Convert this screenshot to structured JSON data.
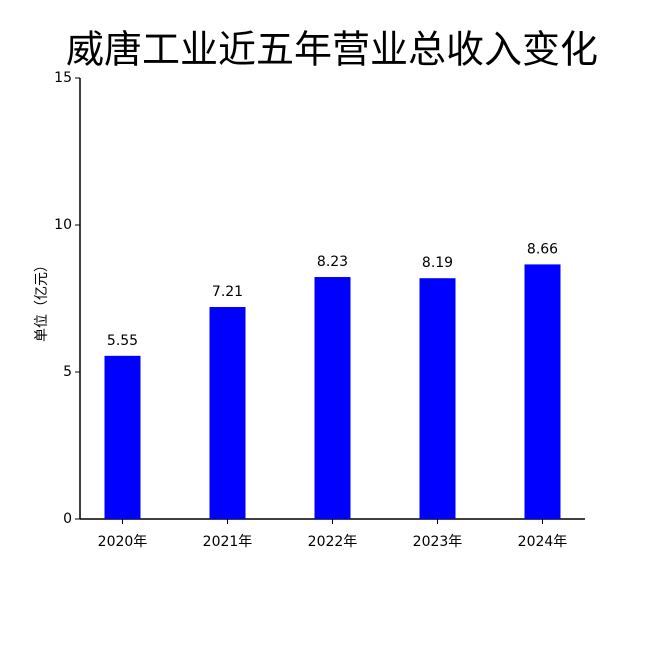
{
  "chart_data": {
    "type": "bar",
    "title": "威唐工业近五年营业总收入变化",
    "y_label": "单位（亿元）",
    "categories": [
      "2020年",
      "2021年",
      "2022年",
      "2023年",
      "2024年"
    ],
    "values": [
      5.55,
      7.21,
      8.23,
      8.19,
      8.66
    ],
    "color": "#0000ff",
    "ylim": [
      0,
      15
    ],
    "yticks": [
      0,
      5,
      10,
      15
    ],
    "grid": false
  }
}
